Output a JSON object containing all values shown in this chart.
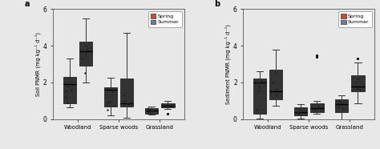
{
  "spring_color": "#cd4a38",
  "summer_color": "#6080a0",
  "spring_color_light": "#cd4a38",
  "summer_color_light": "#6080a0",
  "panel_a_label": "a",
  "panel_b_label": "b",
  "ylabel_a": "Soil PNMR (mg kg⁻¹ d⁻¹)",
  "ylabel_b": "Sediment PNMR (mg kg⁻¹ d⁻¹)",
  "categories": [
    "Woodland",
    "Sparse woods",
    "Grassland"
  ],
  "ylim_a": [
    0,
    6
  ],
  "ylim_b": [
    0,
    6
  ],
  "yticks_a": [
    0,
    2,
    4,
    6
  ],
  "yticks_b": [
    0,
    2,
    4,
    6
  ],
  "background_color": "#e8e8e8",
  "panel_a": {
    "spring": {
      "Woodland": {
        "q1": 0.85,
        "median": 1.9,
        "q3": 2.3,
        "whislo": 0.65,
        "whishi": 3.3,
        "fliers": [],
        "dots": [
          2.2,
          1.6,
          1.5,
          1.8,
          0.9,
          1.2
        ]
      },
      "Sparse woods": {
        "q1": 0.7,
        "median": 1.6,
        "q3": 1.75,
        "whislo": 0.2,
        "whishi": 2.25,
        "fliers": [],
        "dots": [
          0.9,
          0.5,
          1.0,
          1.5
        ]
      },
      "Grassland": {
        "q1": 0.3,
        "median": 0.45,
        "q3": 0.6,
        "whislo": 0.25,
        "whishi": 0.7,
        "fliers": [],
        "dots": [
          0.4,
          0.5,
          0.45,
          0.55,
          0.35,
          0.6
        ]
      }
    },
    "summer": {
      "Woodland": {
        "q1": 2.9,
        "median": 3.7,
        "q3": 4.2,
        "whislo": 2.0,
        "whishi": 5.5,
        "fliers": [],
        "dots": [
          3.5,
          3.3,
          3.8,
          4.0,
          3.6,
          2.5
        ]
      },
      "Sparse woods": {
        "q1": 0.7,
        "median": 0.85,
        "q3": 2.2,
        "whislo": 0.1,
        "whishi": 4.7,
        "fliers": [],
        "dots": [
          1.3,
          0.8,
          1.0
        ]
      },
      "Grassland": {
        "q1": 0.65,
        "median": 0.75,
        "q3": 0.85,
        "whislo": 0.55,
        "whishi": 1.0,
        "fliers": [
          0.28
        ],
        "dots": [
          0.7,
          0.75,
          0.8
        ]
      }
    }
  },
  "panel_b": {
    "spring": {
      "Woodland": {
        "q1": 0.3,
        "median": 2.0,
        "q3": 2.2,
        "whislo": 0.05,
        "whishi": 2.6,
        "fliers": [],
        "dots": [
          1.8,
          2.1,
          0.5,
          1.5,
          2.0
        ]
      },
      "Sparse woods": {
        "q1": 0.2,
        "median": 0.4,
        "q3": 0.65,
        "whislo": 0.05,
        "whishi": 0.8,
        "fliers": [],
        "dots": [
          0.3,
          0.4,
          0.5
        ]
      },
      "Grassland": {
        "q1": 0.4,
        "median": 0.8,
        "q3": 1.1,
        "whislo": 0.0,
        "whishi": 1.3,
        "fliers": [],
        "dots": [
          0.7,
          0.9,
          0.6,
          1.0
        ]
      }
    },
    "summer": {
      "Woodland": {
        "q1": 1.1,
        "median": 1.5,
        "q3": 2.7,
        "whislo": 0.75,
        "whishi": 3.8,
        "fliers": [],
        "dots": [
          1.6,
          2.0,
          1.3,
          2.5
        ]
      },
      "Sparse woods": {
        "q1": 0.4,
        "median": 0.6,
        "q3": 0.85,
        "whislo": 0.3,
        "whishi": 1.0,
        "fliers": [
          3.4,
          3.5
        ],
        "dots": [
          0.5,
          0.7
        ]
      },
      "Grassland": {
        "q1": 1.5,
        "median": 1.8,
        "q3": 2.4,
        "whislo": 0.85,
        "whishi": 3.1,
        "fliers": [
          3.3
        ],
        "dots": [
          2.0,
          1.7,
          2.2,
          1.6
        ]
      }
    }
  }
}
